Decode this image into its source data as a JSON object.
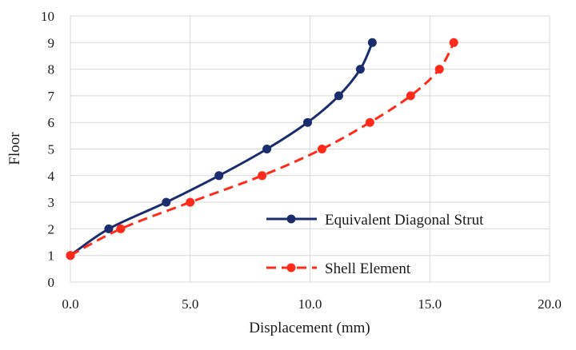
{
  "chart_data": {
    "type": "line",
    "xlabel": "Displacement (mm)",
    "ylabel": "Floor",
    "xlim": [
      0,
      20
    ],
    "ylim": [
      0,
      10
    ],
    "x_ticks": [
      "0.0",
      "5.0",
      "10.0",
      "15.0",
      "20.0"
    ],
    "x_tick_values": [
      0,
      5,
      10,
      15,
      20
    ],
    "y_ticks": [
      "0",
      "1",
      "2",
      "3",
      "4",
      "5",
      "6",
      "7",
      "8",
      "9",
      "10"
    ],
    "y_tick_values": [
      0,
      1,
      2,
      3,
      4,
      5,
      6,
      7,
      8,
      9,
      10
    ],
    "grid": "both",
    "legend_position": "bottom-right",
    "series": [
      {
        "name": "Equivalent Diagonal Strut",
        "color": "#1c2d6e",
        "line_style": "solid",
        "marker": "circle",
        "x": [
          0.0,
          1.6,
          4.0,
          6.2,
          8.2,
          9.9,
          11.2,
          12.1,
          12.6
        ],
        "y": [
          1,
          2,
          3,
          4,
          5,
          6,
          7,
          8,
          9
        ]
      },
      {
        "name": "Shell Element",
        "color": "#ff2a1a",
        "line_style": "dashed",
        "marker": "circle",
        "x": [
          0.0,
          2.1,
          5.0,
          8.0,
          10.5,
          12.5,
          14.2,
          15.4,
          16.0
        ],
        "y": [
          1,
          2,
          3,
          4,
          5,
          6,
          7,
          8,
          9
        ]
      }
    ]
  }
}
